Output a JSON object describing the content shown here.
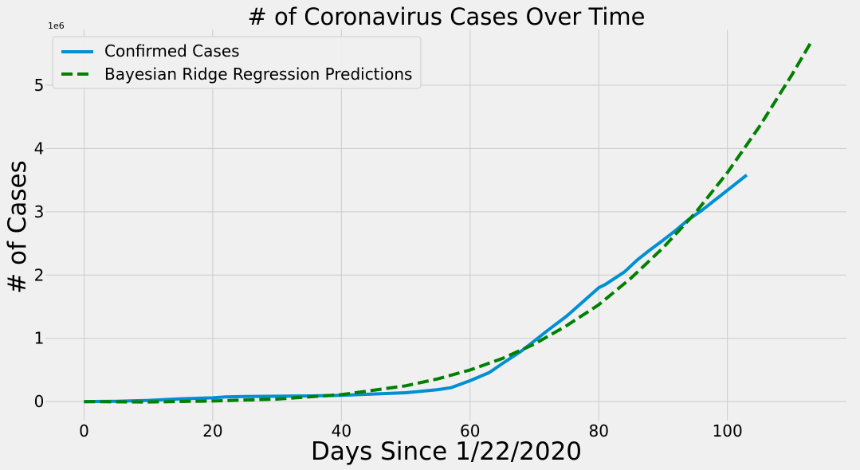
{
  "chart_data": {
    "type": "line",
    "title": "# of Coronavirus Cases Over Time",
    "xlabel": "Days Since 1/22/2020",
    "ylabel": "# of Cases",
    "y_offset_label": "1e6",
    "xlim": [
      -6,
      118.5
    ],
    "ylim": [
      -0.3,
      5.88
    ],
    "x_ticks": [
      0,
      20,
      40,
      60,
      80,
      100
    ],
    "y_ticks": [
      0,
      1,
      2,
      3,
      4,
      5
    ],
    "grid": true,
    "legend_position": "top-left",
    "background_color": "#f0f0f0",
    "series": [
      {
        "name": "Confirmed Cases",
        "color": "#008fd5",
        "dash": "solid",
        "x": [
          0,
          5,
          10,
          15,
          20,
          22,
          25,
          30,
          35,
          40,
          45,
          50,
          52,
          55,
          57,
          60,
          63,
          65,
          68,
          70,
          72,
          75,
          78,
          80,
          81,
          84,
          86,
          88,
          90,
          92,
          94,
          96,
          98,
          100,
          103
        ],
        "y": [
          0.0006,
          0.006,
          0.02,
          0.045,
          0.06,
          0.075,
          0.08,
          0.085,
          0.09,
          0.1,
          0.12,
          0.14,
          0.16,
          0.19,
          0.22,
          0.33,
          0.46,
          0.6,
          0.8,
          0.96,
          1.12,
          1.35,
          1.62,
          1.8,
          1.85,
          2.05,
          2.24,
          2.4,
          2.55,
          2.71,
          2.88,
          3.02,
          3.18,
          3.34,
          3.58
        ]
      },
      {
        "name": "Bayesian Ridge Regression Predictions",
        "color": "#008000",
        "dash": "dashed",
        "x": [
          0,
          10,
          20,
          30,
          40,
          50,
          55,
          60,
          65,
          70,
          75,
          80,
          85,
          90,
          95,
          100,
          105,
          110,
          113
        ],
        "y": [
          0.0,
          -0.005,
          0.01,
          0.04,
          0.11,
          0.25,
          0.36,
          0.5,
          0.68,
          0.91,
          1.2,
          1.53,
          1.95,
          2.43,
          2.98,
          3.62,
          4.35,
          5.16,
          5.68
        ]
      }
    ]
  }
}
